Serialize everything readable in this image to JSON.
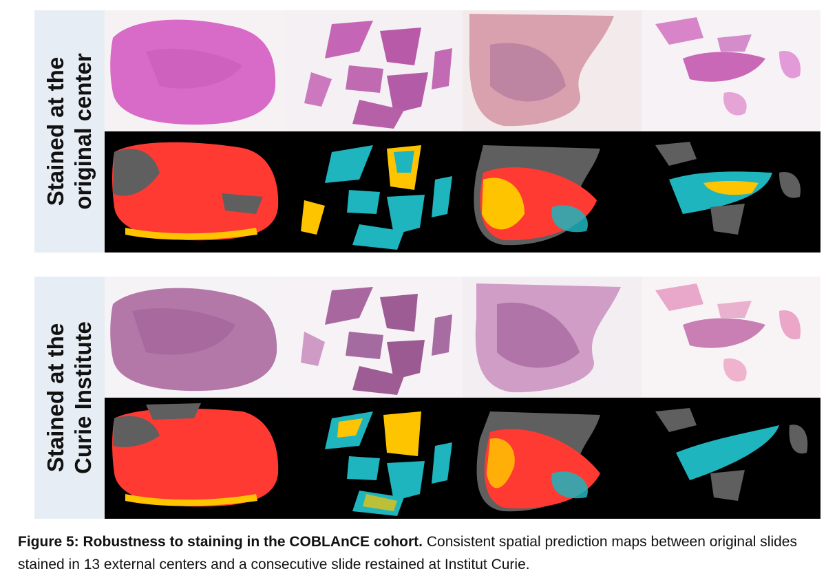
{
  "panels": [
    {
      "label_line1": "Stained at the",
      "label_line2": "original center"
    },
    {
      "label_line1": "Stained at the",
      "label_line2": "Curie Institute"
    }
  ],
  "caption": {
    "title": "Figure 5: Robustness to staining in the COBLAnCE cohort.",
    "text": " Consistent spatial prediction maps between original slides stained in 13 external centers and a consecutive slide restained at Institut Curie."
  },
  "colors": {
    "label_bg": "#e7edf4",
    "map_bg": "#000000",
    "class_red": "#ff3a33",
    "class_yellow": "#ffc400",
    "class_cyan": "#1fb5be",
    "class_gray": "#5f5f5f",
    "stain_original": "#d96bc8",
    "stain_curie": "#b377a8"
  }
}
